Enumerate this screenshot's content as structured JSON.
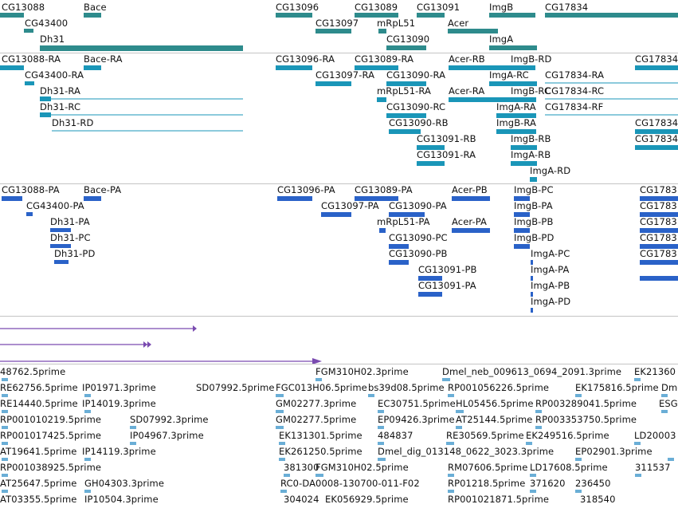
{
  "colors": {
    "gene": "#2e8b8c",
    "transcript": "#1a96b8",
    "protein": "#2a62c8",
    "aux": "#7a4bb0",
    "est": "#6aaed6",
    "separator": "#c4c4c4"
  },
  "tracks": {
    "genes": [
      "CG13088",
      "CG43400",
      "Dh31",
      "Bace",
      "CG13096",
      "CG13097",
      "CG13089",
      "mRpL51",
      "CG13090",
      "CG13091",
      "Acer",
      "ImgB",
      "ImgA",
      "CG17834"
    ],
    "transcripts": [
      "CG13088-RA",
      "CG43400-RA",
      "Dh31-RA",
      "Dh31-RC",
      "Dh31-RD",
      "Bace-RA",
      "CG13096-RA",
      "CG13097-RA",
      "CG13089-RA",
      "mRpL51-RA",
      "CG13090-RA",
      "CG13090-RC",
      "CG13090-RB",
      "CG13091-RB",
      "CG13091-RA",
      "Acer-RB",
      "Acer-RA",
      "ImgB-RD",
      "ImgB-RC",
      "ImgA-RC",
      "ImgA-RA",
      "ImgB-RA",
      "ImgB-RB",
      "ImgA-RB",
      "ImgA-RD",
      "CG17834-RA",
      "CG17834-RC",
      "CG17834-RF",
      "CG17834",
      "CG17834"
    ],
    "proteins": [
      "CG13088-PA",
      "CG43400-PA",
      "Dh31-PA",
      "Dh31-PC",
      "Dh31-PD",
      "Bace-PA",
      "CG13096-PA",
      "CG13097-PA",
      "CG13089-PA",
      "mRpL51-PA",
      "CG13090-PA",
      "CG13090-PC",
      "CG13090-PB",
      "CG13091-PB",
      "CG13091-PA",
      "Acer-PB",
      "Acer-PA",
      "ImgB-PC",
      "ImgB-PA",
      "ImgB-PB",
      "ImgB-PD",
      "ImgA-PC",
      "ImgA-PA",
      "ImgA-PB",
      "ImgA-PD",
      "CG1783",
      "CG1783",
      "CG1783",
      "CG1783",
      "CG1783"
    ],
    "ests": [
      "48762.5prime",
      "FGM310H02.3prime",
      "Dmel_neb_009613_0694_2091.3prime",
      "EK21360",
      "RE62756.5prime",
      "IP01971.3prime",
      "SD07992.5prime",
      "FGC013H06.5prime",
      "bs39d08.5prime",
      "RP001056226.5prime",
      "EK175816.5prime",
      "Dmel",
      "RE14440.5prime",
      "IP14019.3prime",
      "GM02277.3prime",
      "EC30751.5prime",
      "HL05456.5prime",
      "RP003289041.5prime",
      "ESG",
      "RP001010219.5prime",
      "SD07992.3prime",
      "GM02277.5prime",
      "EP09426.3prime",
      "AT25144.5prime",
      "RP003353750.5prime",
      "RP001017425.5prime",
      "IP04967.3prime",
      "EK131301.5prime",
      "484837",
      "RE30569.5prime",
      "EK249516.5prime",
      "LD20003",
      "AT19641.5prime",
      "IP14119.3prime",
      "EK261250.5prime",
      "Dmel_dig_013148_0622_3023.3prime",
      "EP02901.3prime",
      "RP001038925.5prime",
      "381300",
      "FGM310H02.5prime",
      "RM07606.5prime",
      "LD17608.5prime",
      "311537",
      "AT25647.5prime",
      "GH04303.3prime",
      "RC0-DA0008-130700-011-F02",
      "RP01218.5prime",
      "371620",
      "236450",
      "AT03355.5prime",
      "IP10504.3prime",
      "304024",
      "EK056929.5prime",
      "RP001021871.5prime",
      "318540"
    ]
  }
}
